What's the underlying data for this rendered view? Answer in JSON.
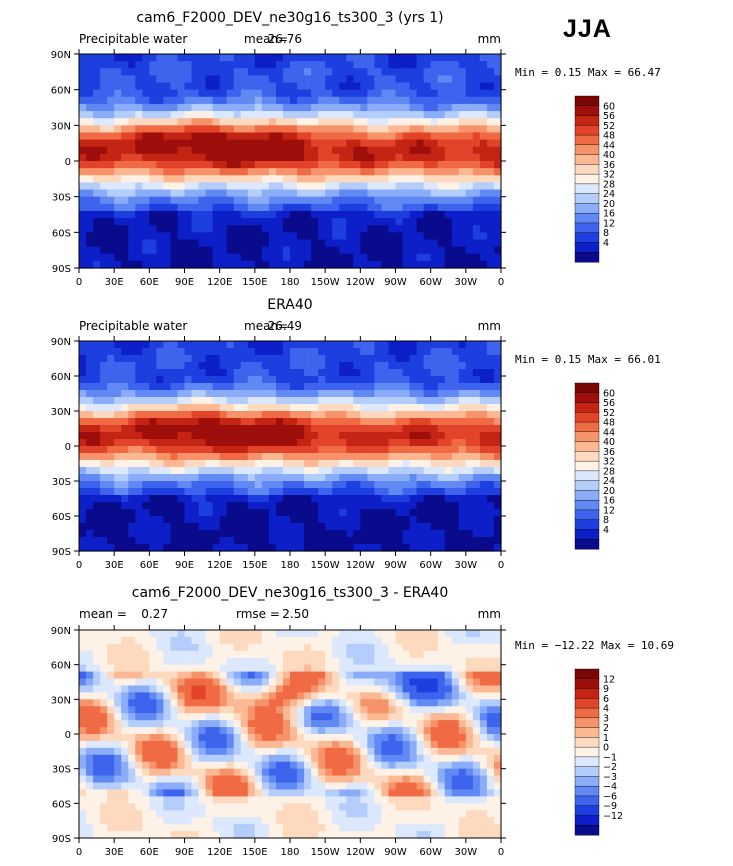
{
  "figure": {
    "season_label": "JJA"
  },
  "palettes": {
    "absolute": [
      "#0a0a8c",
      "#0d1fc8",
      "#1e3fe0",
      "#3e63ec",
      "#6189f4",
      "#8bacf8",
      "#b4cdfb",
      "#dbe8fd",
      "#fdf2e5",
      "#fdd9bf",
      "#fbb893",
      "#f7936b",
      "#f06a44",
      "#e2442a",
      "#c42414",
      "#9e0f0c",
      "#7a0606"
    ],
    "difference": [
      "#0a0a8c",
      "#0d1fc8",
      "#1e3fe0",
      "#3e63ec",
      "#6189f4",
      "#8bacf8",
      "#b4cdfb",
      "#dbe8fd",
      "#fdf2e5",
      "#fdd9bf",
      "#fbb893",
      "#f7936b",
      "#f06a44",
      "#e2442a",
      "#c42414",
      "#9e0f0c",
      "#7a0606"
    ]
  },
  "panels": [
    {
      "title": "cam6_F2000_DEV_ne30g16_ts300_3 (yrs 1)",
      "left_label": "Precipitable water",
      "mean_label": "mean=",
      "mean_value": "26.76",
      "extra_label": "",
      "extra_value": "",
      "units": "mm",
      "min_max_text": "Min =   0.15 Max =  66.47",
      "palette": "absolute",
      "colorbar_labels": [
        "60",
        "56",
        "52",
        "48",
        "44",
        "40",
        "36",
        "32",
        "28",
        "24",
        "20",
        "16",
        "12",
        "8",
        "4"
      ]
    },
    {
      "title": "ERA40",
      "left_label": "Precipitable water",
      "mean_label": "mean=",
      "mean_value": "26.49",
      "extra_label": "",
      "extra_value": "",
      "units": "mm",
      "min_max_text": "Min =   0.15 Max =  66.01",
      "palette": "absolute",
      "colorbar_labels": [
        "60",
        "56",
        "52",
        "48",
        "44",
        "40",
        "36",
        "32",
        "28",
        "24",
        "20",
        "16",
        "12",
        "8",
        "4"
      ]
    },
    {
      "title": "cam6_F2000_DEV_ne30g16_ts300_3 - ERA40",
      "left_label": "mean =",
      "mean_label": "",
      "mean_value": "0.27",
      "extra_label": "rmse =",
      "extra_value": "2.50",
      "units": "mm",
      "min_max_text": "Min = −12.22 Max =  10.69",
      "palette": "difference",
      "colorbar_labels": [
        "12",
        "9",
        "6",
        "4",
        "3",
        "2",
        "1",
        "0",
        "−1",
        "−2",
        "−3",
        "−4",
        "−6",
        "−9",
        "−12"
      ]
    }
  ],
  "axes": {
    "lat_ticks": [
      "90N",
      "60N",
      "30N",
      "0",
      "30S",
      "60S",
      "90S"
    ],
    "lon_ticks": [
      "0",
      "30E",
      "60E",
      "90E",
      "120E",
      "150E",
      "180",
      "150W",
      "120W",
      "90W",
      "60W",
      "30W",
      "0"
    ]
  },
  "chart_data": [
    {
      "type": "heatmap",
      "title": "cam6_F2000_DEV_ne30g16_ts300_3 (yrs 1)",
      "variable": "Precipitable water",
      "units": "mm",
      "mean": 26.76,
      "min": 0.15,
      "max": 66.47,
      "x_range": [
        "0",
        "0"
      ],
      "y_range": [
        "90S",
        "90N"
      ],
      "levels": [
        4,
        8,
        12,
        16,
        20,
        24,
        28,
        32,
        36,
        40,
        44,
        48,
        52,
        56,
        60
      ]
    },
    {
      "type": "heatmap",
      "title": "ERA40",
      "variable": "Precipitable water",
      "units": "mm",
      "mean": 26.49,
      "min": 0.15,
      "max": 66.01,
      "x_range": [
        "0",
        "0"
      ],
      "y_range": [
        "90S",
        "90N"
      ],
      "levels": [
        4,
        8,
        12,
        16,
        20,
        24,
        28,
        32,
        36,
        40,
        44,
        48,
        52,
        56,
        60
      ]
    },
    {
      "type": "heatmap",
      "title": "cam6_F2000_DEV_ne30g16_ts300_3 - ERA40",
      "units": "mm",
      "mean": 0.27,
      "rmse": 2.5,
      "min": -12.22,
      "max": 10.69,
      "x_range": [
        "0",
        "0"
      ],
      "y_range": [
        "90S",
        "90N"
      ],
      "levels": [
        -12,
        -9,
        -6,
        -4,
        -3,
        -2,
        -1,
        0,
        1,
        2,
        3,
        4,
        6,
        9,
        12
      ]
    }
  ]
}
